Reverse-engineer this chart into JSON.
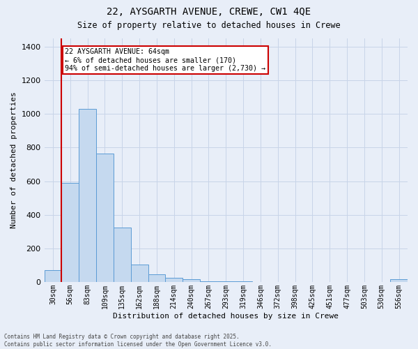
{
  "title_line1": "22, AYSGARTH AVENUE, CREWE, CW1 4QE",
  "title_line2": "Size of property relative to detached houses in Crewe",
  "xlabel": "Distribution of detached houses by size in Crewe",
  "ylabel": "Number of detached properties",
  "bar_labels": [
    "30sqm",
    "56sqm",
    "83sqm",
    "109sqm",
    "135sqm",
    "162sqm",
    "188sqm",
    "214sqm",
    "240sqm",
    "267sqm",
    "293sqm",
    "319sqm",
    "346sqm",
    "372sqm",
    "398sqm",
    "425sqm",
    "451sqm",
    "477sqm",
    "503sqm",
    "530sqm",
    "556sqm"
  ],
  "bar_values": [
    70,
    590,
    1030,
    765,
    325,
    105,
    45,
    25,
    15,
    5,
    2,
    2,
    1,
    1,
    1,
    0,
    0,
    0,
    0,
    0,
    15
  ],
  "bar_color": "#c5d9ef",
  "bar_edgecolor": "#5b9bd5",
  "ylim": [
    0,
    1450
  ],
  "yticks": [
    0,
    200,
    400,
    600,
    800,
    1000,
    1200,
    1400
  ],
  "red_line_index": 1,
  "annotation_text": "22 AYSGARTH AVENUE: 64sqm\n← 6% of detached houses are smaller (170)\n94% of semi-detached houses are larger (2,730) →",
  "annotation_box_facecolor": "#ffffff",
  "annotation_box_edgecolor": "#cc0000",
  "red_line_color": "#cc0000",
  "grid_color": "#c8d4e8",
  "bg_color": "#e8eef8",
  "footnote": "Contains HM Land Registry data © Crown copyright and database right 2025.\nContains public sector information licensed under the Open Government Licence v3.0."
}
